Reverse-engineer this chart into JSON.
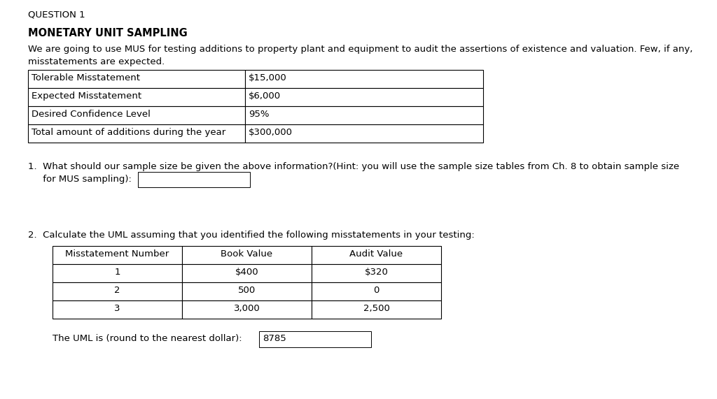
{
  "question_label": "QUESTION 1",
  "section_title": "MONETARY UNIT SAMPLING",
  "intro_line1": "We are going to use MUS for testing additions to property plant and equipment to audit the assertions of existence and valuation. Few, if any,",
  "intro_line2": "misstatements are expected.",
  "info_table_rows": [
    [
      "Tolerable Misstatement",
      "$15,000"
    ],
    [
      "Expected Misstatement",
      "$6,000"
    ],
    [
      "Desired Confidence Level",
      "95%"
    ],
    [
      "Total amount of additions during the year",
      "$300,000"
    ]
  ],
  "q1_line1": "1.  What should our sample size be given the above information?(Hint: you will use the sample size tables from Ch. 8 to obtain sample size",
  "q1_line2": "     for MUS sampling):",
  "q2_text": "2.  Calculate the UML assuming that you identified the following misstatements in your testing:",
  "misstatement_header": [
    "Misstatement Number",
    "Book Value",
    "Audit Value"
  ],
  "misstatement_rows": [
    [
      "1",
      "$400",
      "$320"
    ],
    [
      "2",
      "500",
      "0"
    ],
    [
      "3",
      "3,000",
      "2,500"
    ]
  ],
  "uml_label": "The UML is (round to the nearest dollar):",
  "uml_value": "8785",
  "bg_color": "#ffffff",
  "text_color": "#000000"
}
